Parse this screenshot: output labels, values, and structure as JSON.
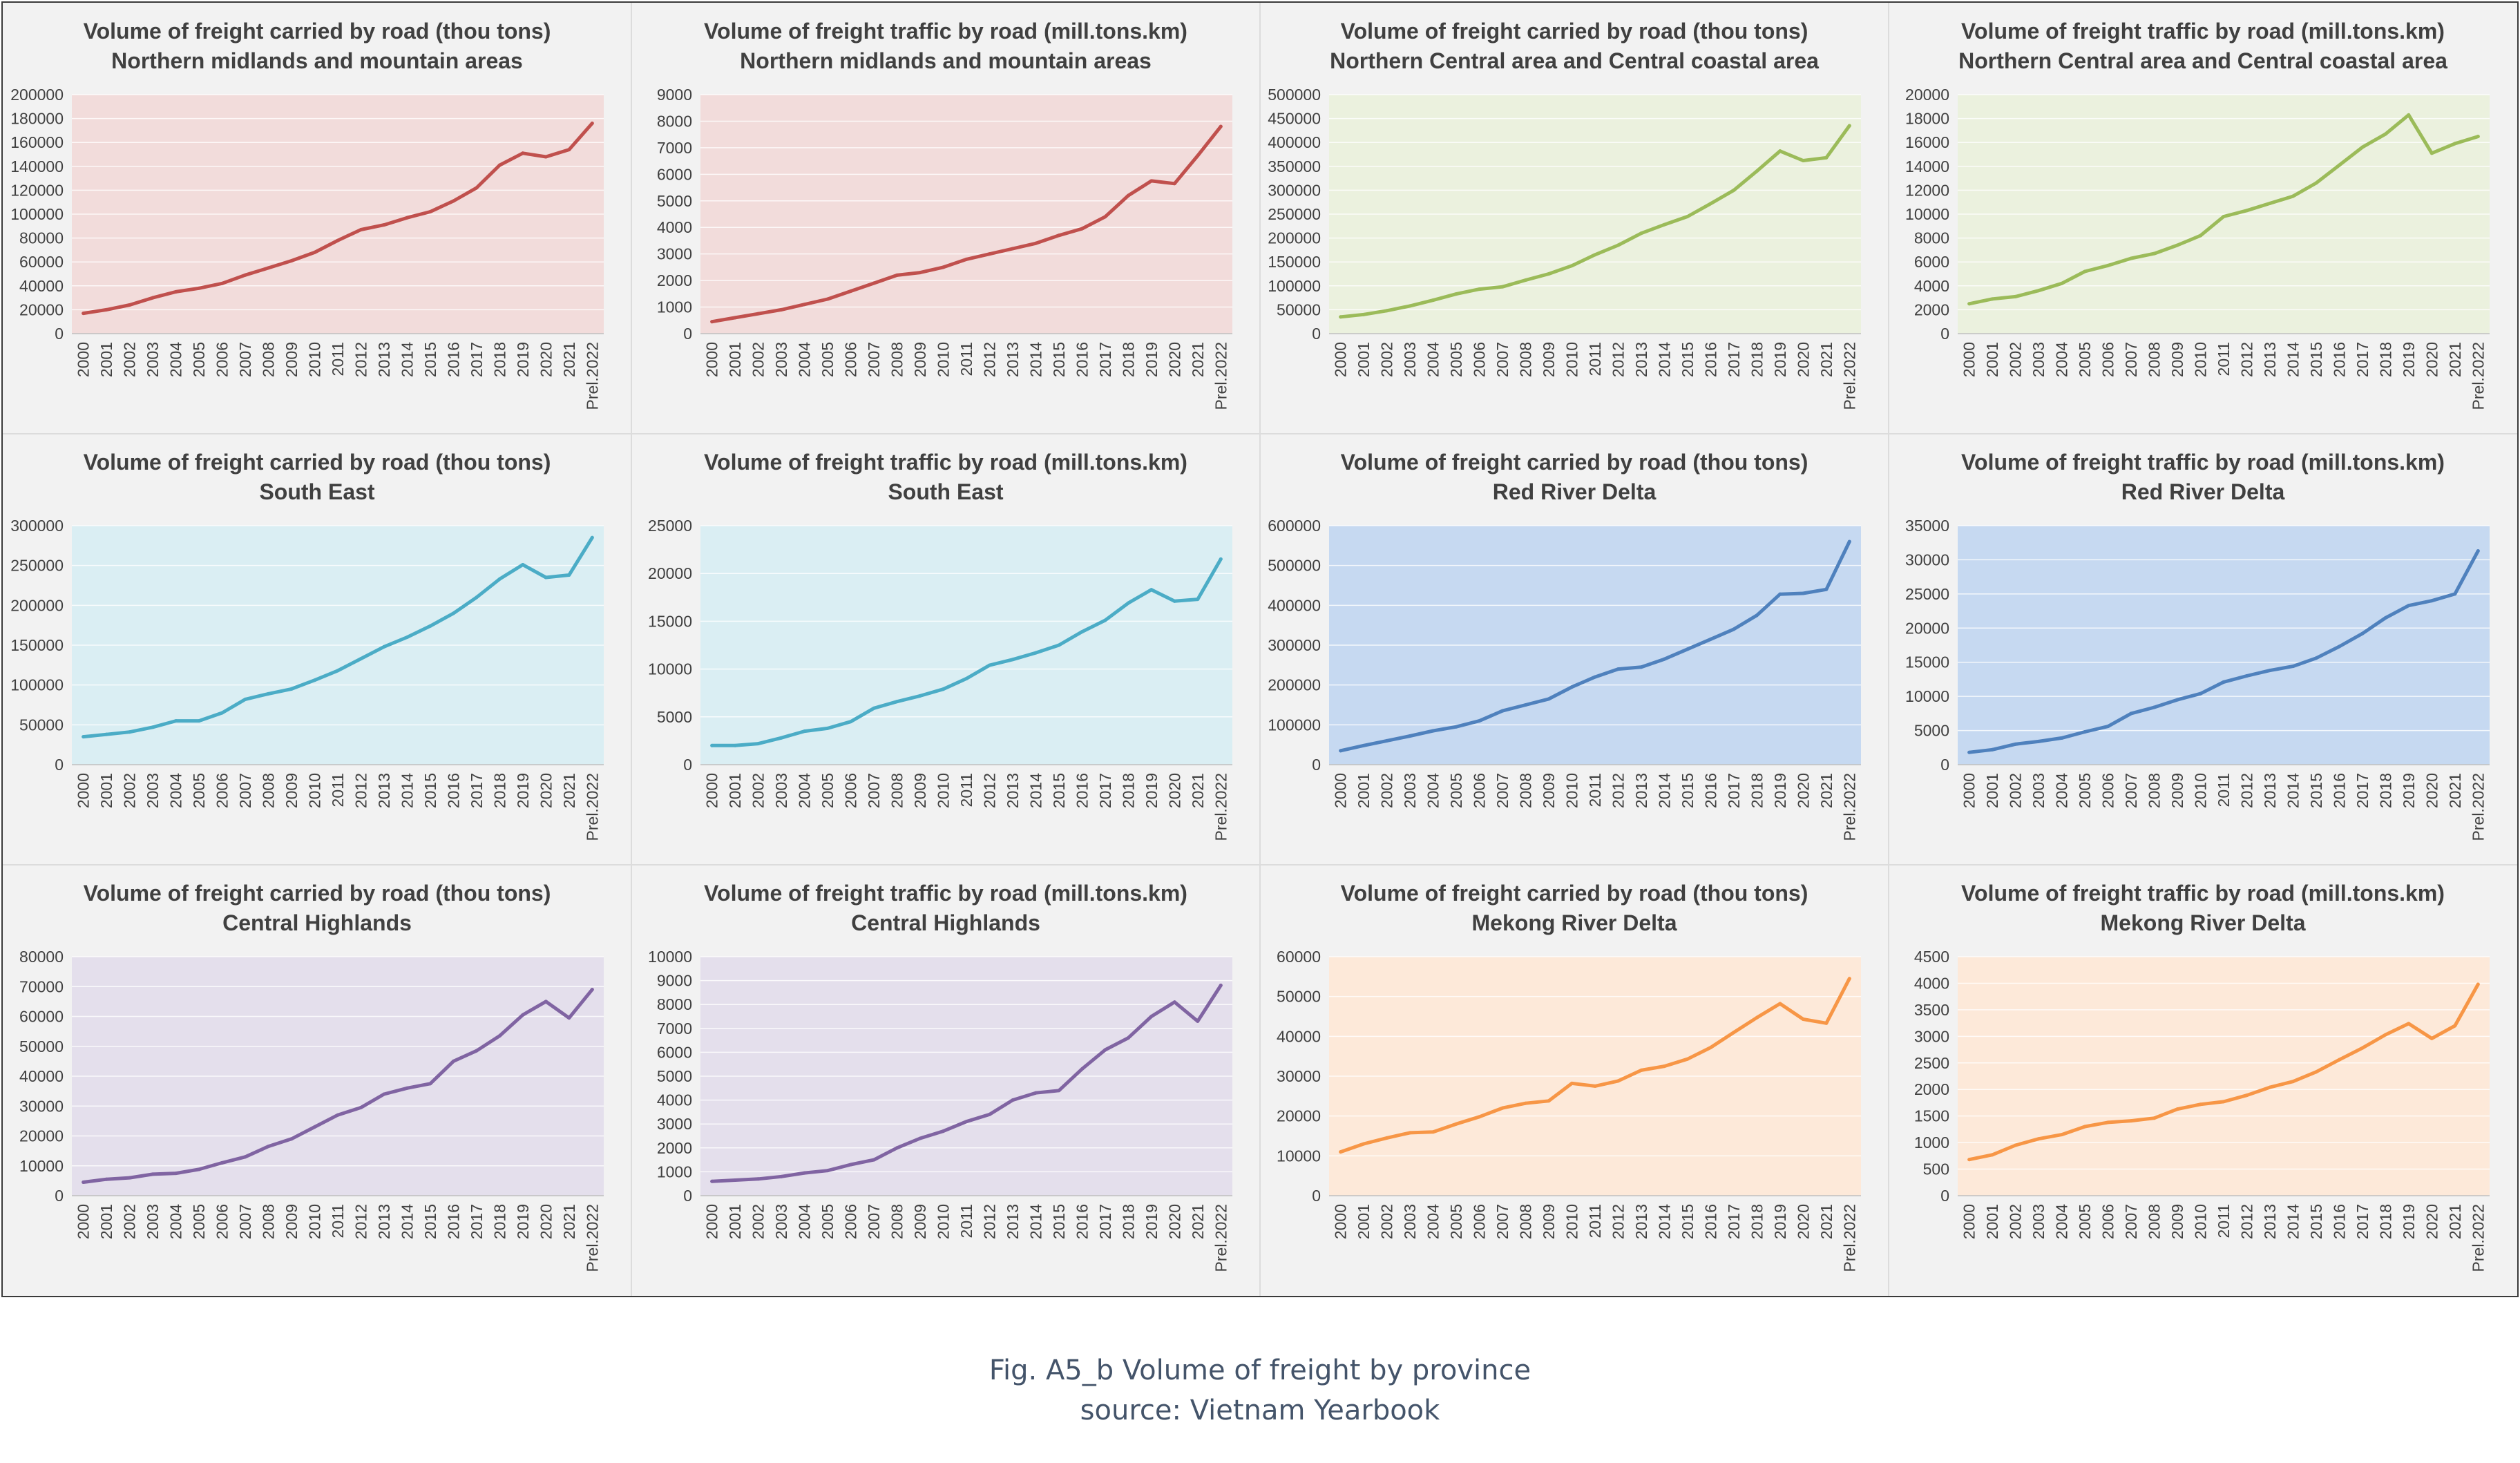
{
  "figure": {
    "caption": "Fig. A5_b Volume of freight by province",
    "source": "source: Vietnam Yearbook"
  },
  "chart_data": [
    {
      "type": "line",
      "title": "Volume of freight carried by road (thou tons)",
      "subtitle": "Northern midlands and mountain areas",
      "color": "#c0504d",
      "bg": "#f2dcdb",
      "categories": [
        "2000",
        "2001",
        "2002",
        "2003",
        "2004",
        "2005",
        "2006",
        "2007",
        "2008",
        "2009",
        "2010",
        "2011",
        "2012",
        "2013",
        "2014",
        "2015",
        "2016",
        "2017",
        "2018",
        "2019",
        "2020",
        "2021",
        "Prel.2022"
      ],
      "series": [
        {
          "values": [
            17000,
            20000,
            24000,
            30000,
            35000,
            38000,
            42000,
            49000,
            55000,
            61000,
            68000,
            78000,
            87000,
            91000,
            97000,
            102000,
            111000,
            122000,
            141000,
            151000,
            148000,
            154000,
            176000
          ]
        }
      ],
      "ylim": [
        0,
        200000
      ],
      "ystep": 20000
    },
    {
      "type": "line",
      "title": "Volume of freight traffic by road (mill.tons.km)",
      "subtitle": "Northern midlands and mountain areas",
      "color": "#c0504d",
      "bg": "#f2dcdb",
      "categories": [
        "2000",
        "2001",
        "2002",
        "2003",
        "2004",
        "2005",
        "2006",
        "2007",
        "2008",
        "2009",
        "2010",
        "2011",
        "2012",
        "2013",
        "2014",
        "2015",
        "2016",
        "2017",
        "2018",
        "2019",
        "2020",
        "2021",
        "Prel.2022"
      ],
      "series": [
        {
          "values": [
            450,
            600,
            750,
            900,
            1100,
            1300,
            1600,
            1900,
            2200,
            2300,
            2500,
            2800,
            3000,
            3200,
            3400,
            3700,
            3950,
            4400,
            5200,
            5750,
            5650,
            6700,
            7800
          ]
        }
      ],
      "ylim": [
        0,
        9000
      ],
      "ystep": 1000
    },
    {
      "type": "line",
      "title": "Volume of freight carried by road (thou tons)",
      "subtitle": "Northern Central area and Central coastal area",
      "color": "#9bbb59",
      "bg": "#ebf1de",
      "categories": [
        "2000",
        "2001",
        "2002",
        "2003",
        "2004",
        "2005",
        "2006",
        "2007",
        "2008",
        "2009",
        "2010",
        "2011",
        "2012",
        "2013",
        "2014",
        "2015",
        "2016",
        "2017",
        "2018",
        "2019",
        "2020",
        "2021",
        "Prel.2022"
      ],
      "series": [
        {
          "values": [
            35000,
            40000,
            48000,
            58000,
            70000,
            83000,
            93000,
            98000,
            112000,
            125000,
            142000,
            165000,
            185000,
            210000,
            228000,
            245000,
            272000,
            300000,
            340000,
            382000,
            362000,
            368000,
            435000
          ]
        }
      ],
      "ylim": [
        0,
        500000
      ],
      "ystep": 50000
    },
    {
      "type": "line",
      "title": "Volume of freight traffic by road (mill.tons.km)",
      "subtitle": "Northern Central area and Central coastal area",
      "color": "#9bbb59",
      "bg": "#ebf1de",
      "categories": [
        "2000",
        "2001",
        "2002",
        "2003",
        "2004",
        "2005",
        "2006",
        "2007",
        "2008",
        "2009",
        "2010",
        "2011",
        "2012",
        "2013",
        "2014",
        "2015",
        "2016",
        "2017",
        "2018",
        "2019",
        "2020",
        "2021",
        "Prel.2022"
      ],
      "series": [
        {
          "values": [
            2500,
            2900,
            3100,
            3600,
            4200,
            5200,
            5700,
            6300,
            6700,
            7400,
            8200,
            9800,
            10300,
            10900,
            11500,
            12600,
            14100,
            15600,
            16700,
            18300,
            15100,
            15900,
            16500
          ]
        }
      ],
      "ylim": [
        0,
        20000
      ],
      "ystep": 2000
    },
    {
      "type": "line",
      "title": "Volume of freight carried by road (thou tons)",
      "subtitle": "South East",
      "color": "#4bacc6",
      "bg": "#daeef3",
      "categories": [
        "2000",
        "2001",
        "2002",
        "2003",
        "2004",
        "2005",
        "2006",
        "2007",
        "2008",
        "2009",
        "2010",
        "2011",
        "2012",
        "2013",
        "2014",
        "2015",
        "2016",
        "2017",
        "2018",
        "2019",
        "2020",
        "2021",
        "Prel.2022"
      ],
      "series": [
        {
          "values": [
            35000,
            38000,
            41000,
            47000,
            55000,
            55000,
            65000,
            82000,
            89000,
            95000,
            106000,
            118000,
            133000,
            148000,
            160000,
            174000,
            190000,
            210000,
            233000,
            251000,
            235000,
            238000,
            285000
          ]
        }
      ],
      "ylim": [
        0,
        300000
      ],
      "ystep": 50000
    },
    {
      "type": "line",
      "title": "Volume of freight traffic by road (mill.tons.km)",
      "subtitle": "South East",
      "color": "#4bacc6",
      "bg": "#daeef3",
      "categories": [
        "2000",
        "2001",
        "2002",
        "2003",
        "2004",
        "2005",
        "2006",
        "2007",
        "2008",
        "2009",
        "2010",
        "2011",
        "2012",
        "2013",
        "2014",
        "2015",
        "2016",
        "2017",
        "2018",
        "2019",
        "2020",
        "2021",
        "Prel.2022"
      ],
      "series": [
        {
          "values": [
            2000,
            2000,
            2200,
            2800,
            3500,
            3800,
            4500,
            5900,
            6600,
            7200,
            7900,
            9000,
            10400,
            11000,
            11700,
            12500,
            13900,
            15100,
            16900,
            18300,
            17100,
            17300,
            21500
          ]
        }
      ],
      "ylim": [
        0,
        25000
      ],
      "ystep": 5000
    },
    {
      "type": "line",
      "title": "Volume of freight carried by road (thou tons)",
      "subtitle": "Red River Delta",
      "color": "#4f81bd",
      "bg": "#c6d9f1",
      "categories": [
        "2000",
        "2001",
        "2002",
        "2003",
        "2004",
        "2005",
        "2006",
        "2007",
        "2008",
        "2009",
        "2010",
        "2011",
        "2012",
        "2013",
        "2014",
        "2015",
        "2016",
        "2017",
        "2018",
        "2019",
        "2020",
        "2021",
        "Prel.2022"
      ],
      "series": [
        {
          "values": [
            35000,
            48000,
            60000,
            72000,
            85000,
            95000,
            110000,
            135000,
            150000,
            165000,
            195000,
            220000,
            240000,
            245000,
            265000,
            290000,
            315000,
            340000,
            375000,
            428000,
            430000,
            440000,
            560000
          ]
        }
      ],
      "ylim": [
        0,
        600000
      ],
      "ystep": 100000
    },
    {
      "type": "line",
      "title": "Volume of freight traffic by road (mill.tons.km)",
      "subtitle": "Red River Delta",
      "color": "#4f81bd",
      "bg": "#c6d9f1",
      "categories": [
        "2000",
        "2001",
        "2002",
        "2003",
        "2004",
        "2005",
        "2006",
        "2007",
        "2008",
        "2009",
        "2010",
        "2011",
        "2012",
        "2013",
        "2014",
        "2015",
        "2016",
        "2017",
        "2018",
        "2019",
        "2020",
        "2021",
        "Prel.2022"
      ],
      "series": [
        {
          "values": [
            1800,
            2200,
            3000,
            3400,
            3900,
            4800,
            5600,
            7500,
            8400,
            9500,
            10400,
            12100,
            13000,
            13800,
            14400,
            15600,
            17300,
            19200,
            21500,
            23300,
            24000,
            25000,
            31300
          ]
        }
      ],
      "ylim": [
        0,
        35000
      ],
      "ystep": 5000
    },
    {
      "type": "line",
      "title": "Volume of freight carried by road (thou tons)",
      "subtitle": "Central Highlands",
      "color": "#8064a2",
      "bg": "#e4dfec",
      "categories": [
        "2000",
        "2001",
        "2002",
        "2003",
        "2004",
        "2005",
        "2006",
        "2007",
        "2008",
        "2009",
        "2010",
        "2011",
        "2012",
        "2013",
        "2014",
        "2015",
        "2016",
        "2017",
        "2018",
        "2019",
        "2020",
        "2021",
        "Prel.2022"
      ],
      "series": [
        {
          "values": [
            4500,
            5500,
            6000,
            7200,
            7500,
            8800,
            11000,
            13000,
            16500,
            19000,
            23000,
            27000,
            29500,
            34000,
            36000,
            37500,
            45000,
            48500,
            53500,
            60500,
            65000,
            59500,
            69000
          ]
        }
      ],
      "ylim": [
        0,
        80000
      ],
      "ystep": 10000
    },
    {
      "type": "line",
      "title": "Volume of freight traffic by road (mill.tons.km)",
      "subtitle": "Central Highlands",
      "color": "#8064a2",
      "bg": "#e4dfec",
      "categories": [
        "2000",
        "2001",
        "2002",
        "2003",
        "2004",
        "2005",
        "2006",
        "2007",
        "2008",
        "2009",
        "2010",
        "2011",
        "2012",
        "2013",
        "2014",
        "2015",
        "2016",
        "2017",
        "2018",
        "2019",
        "2020",
        "2021",
        "Prel.2022"
      ],
      "series": [
        {
          "values": [
            600,
            650,
            700,
            800,
            950,
            1050,
            1300,
            1500,
            2000,
            2400,
            2700,
            3100,
            3400,
            4000,
            4300,
            4400,
            5300,
            6100,
            6600,
            7500,
            8100,
            7300,
            8800
          ]
        }
      ],
      "ylim": [
        0,
        10000
      ],
      "ystep": 1000
    },
    {
      "type": "line",
      "title": "Volume of freight carried by road (thou tons)",
      "subtitle": "Mekong River Delta",
      "color": "#f79646",
      "bg": "#fde9d9",
      "categories": [
        "2000",
        "2001",
        "2002",
        "2003",
        "2004",
        "2005",
        "2006",
        "2007",
        "2008",
        "2009",
        "2010",
        "2011",
        "2012",
        "2013",
        "2014",
        "2015",
        "2016",
        "2017",
        "2018",
        "2019",
        "2020",
        "2021",
        "Prel.2022"
      ],
      "series": [
        {
          "values": [
            11000,
            13000,
            14500,
            15800,
            16000,
            18000,
            19800,
            22000,
            23200,
            23800,
            28200,
            27500,
            28800,
            31500,
            32500,
            34300,
            37200,
            41000,
            44700,
            48200,
            44300,
            43300,
            54500
          ]
        }
      ],
      "ylim": [
        0,
        60000
      ],
      "ystep": 10000
    },
    {
      "type": "line",
      "title": "Volume of freight traffic by road (mill.tons.km)",
      "subtitle": "Mekong River Delta",
      "color": "#f79646",
      "bg": "#fde9d9",
      "categories": [
        "2000",
        "2001",
        "2002",
        "2003",
        "2004",
        "2005",
        "2006",
        "2007",
        "2008",
        "2009",
        "2010",
        "2011",
        "2012",
        "2013",
        "2014",
        "2015",
        "2016",
        "2017",
        "2018",
        "2019",
        "2020",
        "2021",
        "Prel.2022"
      ],
      "series": [
        {
          "values": [
            680,
            770,
            950,
            1070,
            1150,
            1300,
            1380,
            1410,
            1460,
            1630,
            1720,
            1770,
            1890,
            2040,
            2150,
            2330,
            2560,
            2780,
            3030,
            3240,
            2960,
            3200,
            3980
          ]
        }
      ],
      "ylim": [
        0,
        4500
      ],
      "ystep": 500
    }
  ]
}
